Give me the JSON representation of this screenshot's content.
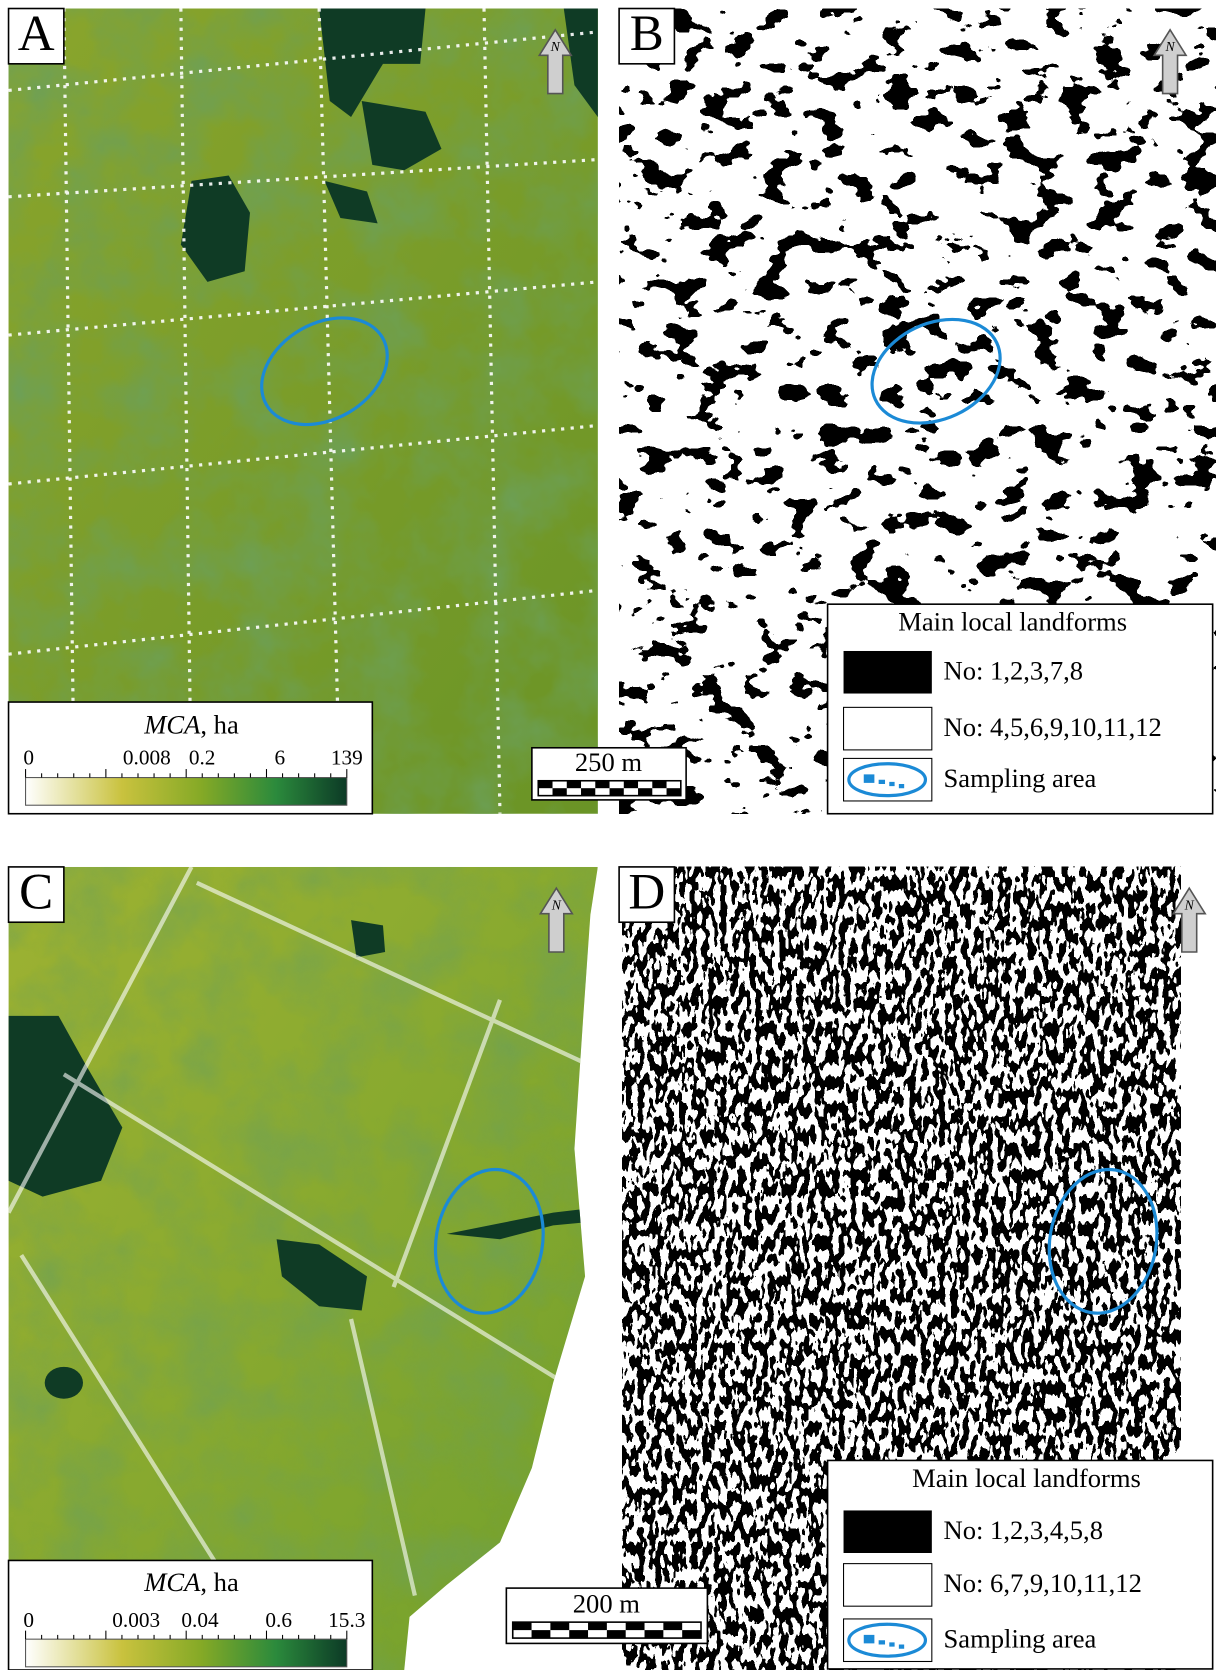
{
  "panels": [
    {
      "label": "A",
      "north": "N",
      "legend": {
        "variable": "MCA",
        "unit": ", ha",
        "ticks": [
          "0",
          "0.008",
          "0.2",
          "6",
          "139"
        ]
      },
      "scale": "250 m"
    },
    {
      "label": "B",
      "north": "N",
      "legend": {
        "title": "Main local landforms",
        "items": [
          "No: 1,2,3,7,8",
          "No: 4,5,6,9,10,11,12",
          "Sampling area"
        ]
      }
    },
    {
      "label": "C",
      "north": "N",
      "legend": {
        "variable": "MCA",
        "unit": ", ha",
        "ticks": [
          "0",
          "0.003",
          "0.04",
          "0.6",
          "15.3"
        ]
      },
      "scale": "200 m"
    },
    {
      "label": "D",
      "north": "N",
      "legend": {
        "title": "Main local landforms",
        "items": [
          "No: 1,2,3,4,5,8",
          "No: 6,7,9,10,11,12",
          "Sampling area"
        ]
      }
    }
  ]
}
